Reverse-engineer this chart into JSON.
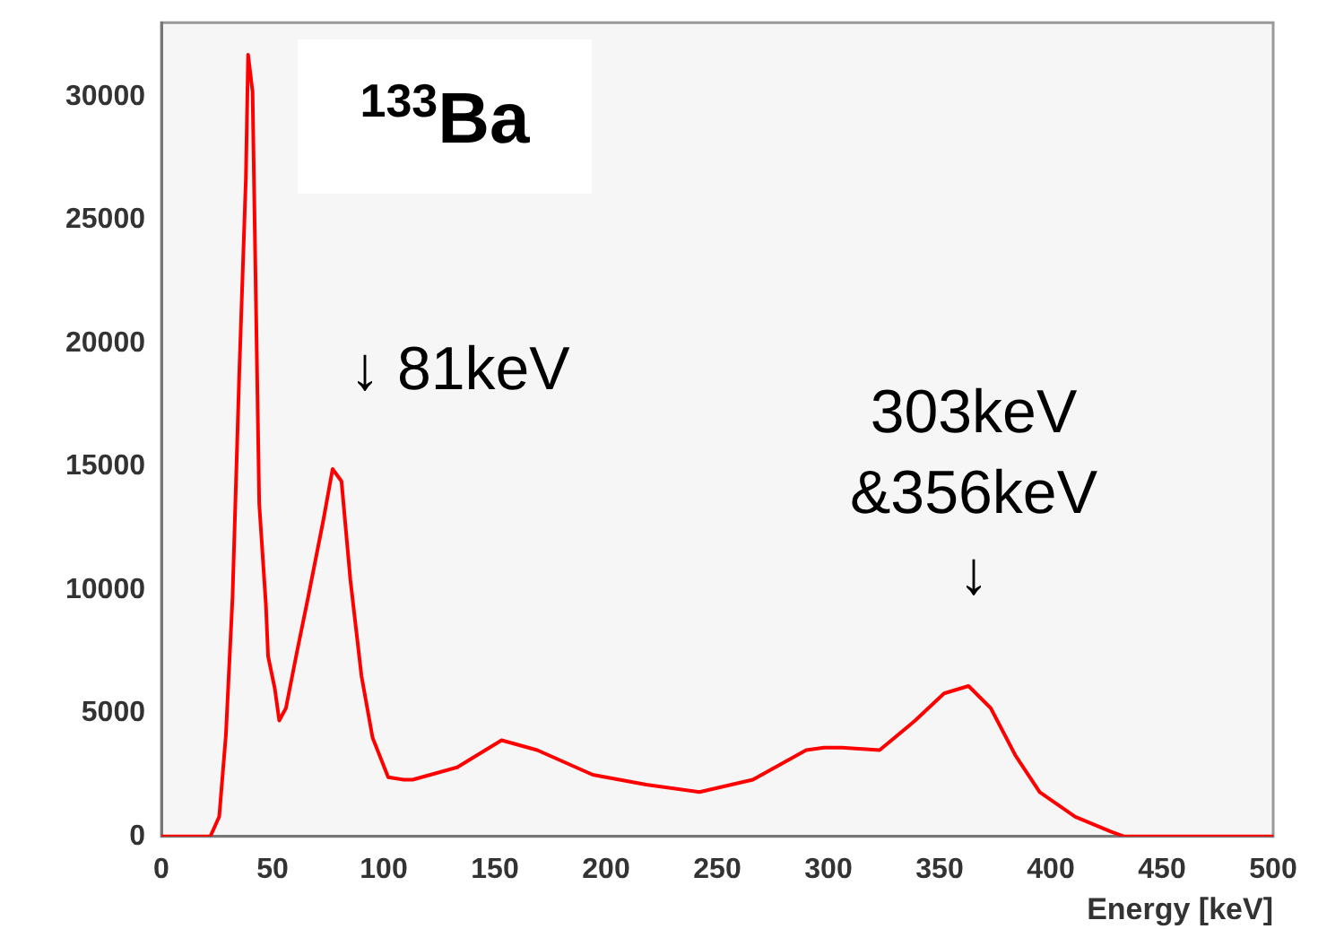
{
  "chart_data": {
    "type": "line",
    "xlabel": "Energy [keV]",
    "annotations": [
      "$^{133}$Ba",
      "↓ 81keV",
      "303keV\n&356keV\n↓"
    ],
    "x": [
      0,
      22,
      26,
      29,
      32,
      35,
      38,
      39,
      41,
      42,
      44,
      47,
      48,
      51,
      53,
      56,
      61,
      66,
      73,
      77,
      81,
      85,
      90,
      95,
      102,
      109,
      113,
      121,
      133,
      153,
      169,
      194,
      218,
      242,
      266,
      290,
      298,
      306,
      323,
      339,
      352,
      363,
      373,
      384,
      395,
      411,
      427,
      433,
      500
    ],
    "series": [
      {
        "color": "#ff0000",
        "values": [
          0,
          0,
          800,
          4100,
          9700,
          18700,
          26700,
          31700,
          30200,
          24600,
          13500,
          9400,
          7300,
          6000,
          4700,
          5200,
          7500,
          9700,
          12900,
          14900,
          14400,
          10400,
          6500,
          4000,
          2400,
          2300,
          2300,
          2500,
          2800,
          3900,
          3500,
          2500,
          2100,
          1800,
          2300,
          3500,
          3600,
          3600,
          3500,
          4700,
          5800,
          6100,
          5200,
          3300,
          1800,
          800,
          200,
          0,
          0
        ]
      }
    ],
    "xlim": [
      0,
      500
    ],
    "xticks": [
      0,
      50,
      100,
      150,
      200,
      250,
      300,
      350,
      400,
      450,
      500
    ],
    "ylim": [
      0,
      33000
    ],
    "yticks": [
      0,
      5000,
      10000,
      15000,
      20000,
      25000,
      30000
    ],
    "grid": false,
    "legend": false
  }
}
